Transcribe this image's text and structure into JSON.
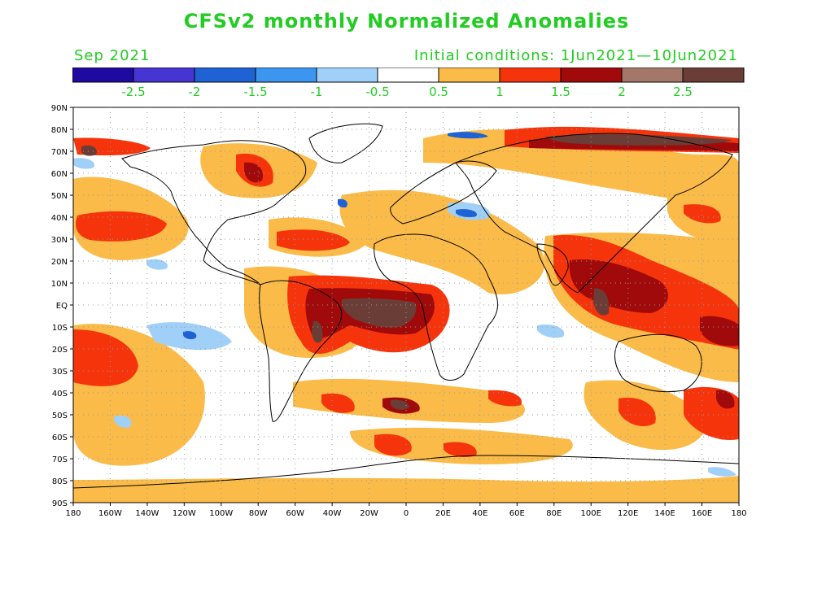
{
  "title": "CFSv2 monthly Normalized Anomalies",
  "valid_month": "Sep 2021",
  "initial_conditions": "Initial conditions: 1Jun2021—10Jun2021",
  "colorbar": {
    "colors": [
      "#1e0aa0",
      "#4635d2",
      "#1f62d4",
      "#3c96f0",
      "#a0d0f8",
      "#ffffff",
      "#fbbb48",
      "#f6340b",
      "#a00a0a",
      "#a47868",
      "#6a3e36"
    ],
    "tick_labels": [
      "-2.5",
      "-2",
      "-1.5",
      "-1",
      "-0.5",
      "0.5",
      "1",
      "1.5",
      "2",
      "2.5"
    ]
  },
  "axes": {
    "lat_labels": [
      "90N",
      "80N",
      "70N",
      "60N",
      "50N",
      "40N",
      "30N",
      "20N",
      "10N",
      "EQ",
      "10S",
      "20S",
      "30S",
      "40S",
      "50S",
      "60S",
      "70S",
      "80S",
      "90S"
    ],
    "lon_labels": [
      "180",
      "160W",
      "140W",
      "120W",
      "100W",
      "80W",
      "60W",
      "40W",
      "20W",
      "0",
      "20E",
      "40E",
      "60E",
      "80E",
      "100E",
      "120E",
      "140E",
      "160E",
      "180"
    ]
  }
}
